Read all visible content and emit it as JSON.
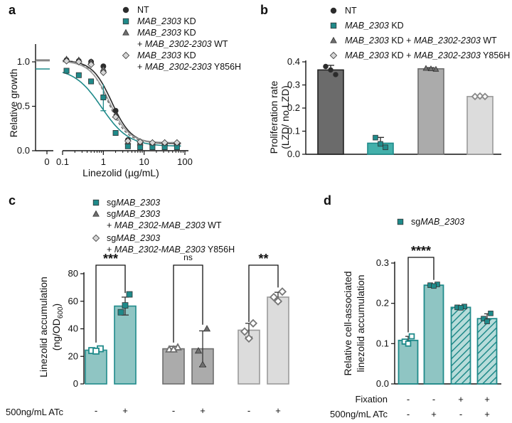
{
  "colors": {
    "nt": "#2b2b2b",
    "kd": "#1f8a8a",
    "wt": "#6e6e6e",
    "y856h": "#d0d0d0",
    "teal_fill": "#8fc5c3",
    "teal_hatch": "#b7dcda"
  },
  "chart_data": [
    {
      "panel": "a",
      "type": "line",
      "xscale": "log",
      "xlabel": "Linezolid (µg/mL)",
      "ylabel": "Relative growth",
      "xticks": [
        "0",
        "0.1",
        "1",
        "10",
        "100"
      ],
      "yticks": [
        "0.0",
        "0.5",
        "1.0"
      ],
      "ylim": [
        0,
        1.2
      ],
      "legend": [
        {
          "key": "nt",
          "marker": "circle",
          "pre": "",
          "italic": "",
          "post": "NT",
          "line2_pre": "",
          "line2_italic": "",
          "line2_post": ""
        },
        {
          "key": "kd",
          "marker": "square",
          "pre": "",
          "italic": "MAB_2303",
          "post": " KD",
          "line2_pre": "",
          "line2_italic": "",
          "line2_post": ""
        },
        {
          "key": "wt",
          "marker": "triangle",
          "pre": "",
          "italic": "MAB_2303",
          "post": " KD",
          "line2_pre": "+ ",
          "line2_italic": "MAB_2302-2303",
          "line2_post": " WT"
        },
        {
          "key": "y856h",
          "marker": "diamond",
          "pre": "",
          "italic": "MAB_2303",
          "post": " KD",
          "line2_pre": "+ ",
          "line2_italic": "MAB_2302-2303",
          "line2_post": " Y856H"
        }
      ],
      "x": [
        0.125,
        0.25,
        0.5,
        1,
        2,
        4,
        8,
        16,
        32,
        64
      ],
      "series": [
        {
          "name": "NT",
          "key": "nt",
          "zero": 1.02,
          "ic50": 1.6,
          "hill": 1.8,
          "top": 1.02,
          "bottom": 0.08,
          "values": [
            1.02,
            1.01,
            1.0,
            0.95,
            0.45,
            0.12,
            0.09,
            0.08,
            0.08,
            0.08
          ]
        },
        {
          "name": "MAB_2303 KD",
          "key": "kd",
          "zero": 0.92,
          "ic50": 0.9,
          "hill": 1.3,
          "top": 0.93,
          "bottom": 0.05,
          "values": [
            0.9,
            0.85,
            0.78,
            0.6,
            0.2,
            0.05,
            0.04,
            0.04,
            0.04,
            0.04
          ]
        },
        {
          "name": "MAB_2303 KD + MAB_2302-2303 WT",
          "key": "wt",
          "zero": 1.02,
          "ic50": 1.3,
          "hill": 1.9,
          "top": 1.02,
          "bottom": 0.09,
          "values": [
            1.03,
            1.02,
            1.0,
            0.92,
            0.4,
            0.1,
            0.09,
            0.09,
            0.09,
            0.09
          ]
        },
        {
          "name": "MAB_2303 KD + MAB_2302-2303 Y856H",
          "key": "y856h",
          "zero": 1.01,
          "ic50": 1.4,
          "hill": 1.8,
          "top": 1.01,
          "bottom": 0.09,
          "values": [
            1.01,
            1.0,
            0.97,
            0.88,
            0.38,
            0.11,
            0.1,
            0.09,
            0.09,
            0.09
          ]
        }
      ]
    },
    {
      "panel": "b",
      "type": "bar",
      "ylabel": "Proliferation rate (LZD/ no LZD)",
      "ylabel_line1": "Proliferation rate",
      "ylabel_line2": "(LZD/ no LZD)",
      "yticks": [
        "0.0",
        "0.1",
        "0.2",
        "0.3",
        "0.4"
      ],
      "ylim": [
        0,
        0.4
      ],
      "legend": [
        {
          "key": "nt",
          "marker": "circle",
          "pre": "",
          "italic": "",
          "post": "NT",
          "line2_pre": "",
          "line2_italic": "",
          "line2_post": ""
        },
        {
          "key": "kd",
          "marker": "square",
          "pre": "",
          "italic": "MAB_2303",
          "post": " KD",
          "line2_pre": "",
          "line2_italic": "",
          "line2_post": ""
        },
        {
          "key": "wt",
          "marker": "triangle",
          "pre": "",
          "italic": "MAB_2303",
          "post": " KD + ",
          "line2_pre": "",
          "line2_italic": "MAB_2302-2303",
          "line2_post": " WT"
        },
        {
          "key": "y856h",
          "marker": "diamond",
          "pre": "",
          "italic": "MAB_2303",
          "post": " KD + ",
          "line2_pre": "",
          "line2_italic": "MAB_2302-2303",
          "line2_post": "  Y856H"
        }
      ],
      "bars": [
        {
          "key": "nt",
          "fill": "#6b6b6b",
          "stroke": "#222",
          "value": 0.365,
          "err": 0.02,
          "points": [
            0.38,
            0.365,
            0.345
          ],
          "marker": "circle"
        },
        {
          "key": "kd",
          "fill": "#43b0ab",
          "stroke": "#1f8a8a",
          "value": 0.048,
          "err": 0.025,
          "points": [
            0.072,
            0.045,
            0.03
          ],
          "marker": "square"
        },
        {
          "key": "wt",
          "fill": "#ababab",
          "stroke": "#6e6e6e",
          "value": 0.37,
          "err": 0.005,
          "points": [
            0.372,
            0.37,
            0.368
          ],
          "marker": "triangle"
        },
        {
          "key": "y856h",
          "fill": "#dcdcdc",
          "stroke": "#9a9a9a",
          "value": 0.25,
          "err": 0.003,
          "points": [
            0.25,
            0.252,
            0.25
          ],
          "marker": "diamond"
        }
      ]
    },
    {
      "panel": "c",
      "type": "bar",
      "ylabel": "Linezolid accumulation (ng/OD600)",
      "ylabel_line1": "Linezolid accumulation",
      "ylabel_line2_main": "(ng/OD",
      "ylabel_line2_sub": "600",
      "ylabel_line2_end": ")",
      "yticks": [
        "0",
        "20",
        "40",
        "60",
        "80"
      ],
      "ylim": [
        0,
        80
      ],
      "row_label": "500ng/mL ATc",
      "legend": [
        {
          "key": "kd",
          "marker": "square",
          "pre": "sg",
          "italic": "MAB_2303",
          "post": "",
          "line2_pre": "",
          "line2_italic": "",
          "line2_post": ""
        },
        {
          "key": "wt",
          "marker": "triangle",
          "pre": "sg",
          "italic": "MAB_2303",
          "post": "",
          "line2_pre": "+ ",
          "line2_italic": "MAB_2302-MAB_2303",
          "line2_post": " WT"
        },
        {
          "key": "y856h",
          "marker": "diamond",
          "pre": "sg",
          "italic": "MAB_2303",
          "post": "",
          "line2_pre": "+ ",
          "line2_italic": "MAB_2302-MAB_2303",
          "line2_post": "  Y856H"
        }
      ],
      "bars": [
        {
          "group": 0,
          "atc": "-",
          "fill": "#8fc5c3",
          "stroke": "#1f8a8a",
          "value": 24.5,
          "err": 1.5,
          "points": [
            25.5,
            24.2,
            23.8
          ],
          "marker": "square-open"
        },
        {
          "group": 0,
          "atc": "+",
          "fill": "#8fc5c3",
          "stroke": "#1f8a8a",
          "value": 56.5,
          "err": 6.5,
          "points": [
            65,
            52,
            57
          ],
          "marker": "square"
        },
        {
          "group": 1,
          "atc": "-",
          "fill": "#ababab",
          "stroke": "#6e6e6e",
          "value": 25.5,
          "err": 1.8,
          "points": [
            26.5,
            25,
            25
          ],
          "marker": "triangle-open"
        },
        {
          "group": 1,
          "atc": "+",
          "fill": "#ababab",
          "stroke": "#6e6e6e",
          "value": 25.5,
          "err": 13,
          "points": [
            40,
            24,
            14
          ],
          "marker": "triangle"
        },
        {
          "group": 2,
          "atc": "-",
          "fill": "#dcdcdc",
          "stroke": "#9a9a9a",
          "value": 39,
          "err": 5,
          "points": [
            44,
            38,
            33
          ],
          "marker": "diamond-open"
        },
        {
          "group": 2,
          "atc": "+",
          "fill": "#dcdcdc",
          "stroke": "#9a9a9a",
          "value": 63,
          "err": 3.5,
          "points": [
            67,
            63,
            60
          ],
          "marker": "diamond-open"
        }
      ],
      "significance": [
        "***",
        "ns",
        "**"
      ]
    },
    {
      "panel": "d",
      "type": "bar",
      "ylabel": "Relative cell-associated linezolid accumulation",
      "ylabel_line1": "Relative cell-associated",
      "ylabel_line2": "linezolid accumulation",
      "yticks": [
        "0.0",
        "0.1",
        "0.2",
        "0.3"
      ],
      "ylim": [
        0,
        0.3
      ],
      "row_labels": [
        "Fixation",
        "500ng/mL ATc"
      ],
      "legend": [
        {
          "key": "kd",
          "marker": "square",
          "pre": "sg",
          "italic": "MAB_2303",
          "post": "",
          "line2_pre": "",
          "line2_italic": "",
          "line2_post": ""
        }
      ],
      "bars": [
        {
          "fixation": "-",
          "atc": "-",
          "value": 0.108,
          "err": 0.01,
          "points": [
            0.118,
            0.105,
            0.1
          ],
          "hatched": false
        },
        {
          "fixation": "-",
          "atc": "+",
          "value": 0.245,
          "err": 0.003,
          "points": [
            0.247,
            0.245,
            0.243
          ],
          "hatched": false
        },
        {
          "fixation": "+",
          "atc": "-",
          "value": 0.19,
          "err": 0.003,
          "points": [
            0.192,
            0.19,
            0.189
          ],
          "hatched": true
        },
        {
          "fixation": "+",
          "atc": "+",
          "value": 0.162,
          "err": 0.012,
          "points": [
            0.175,
            0.162,
            0.155
          ],
          "hatched": true
        }
      ],
      "significance": "****"
    }
  ]
}
